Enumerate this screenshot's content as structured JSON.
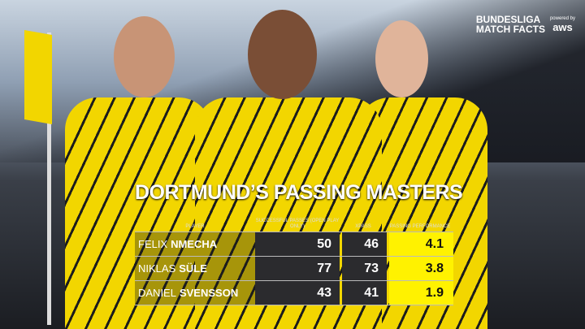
{
  "brand": {
    "line1": "BUNDESLIGA",
    "line2": "MATCH FACTS",
    "powered": "powered by",
    "aws": "aws"
  },
  "title": "DORTMUND’S PASSING MASTERS",
  "headers": {
    "player": "PLAYER",
    "passes": "SUCCESSFUL PASSES (OPEN PLAY ONLY)",
    "xpass": "XPASS",
    "performance": "PASSING PERFORMANCE"
  },
  "rows": [
    {
      "first": "FELIX",
      "last": "NMECHA",
      "passes": "50",
      "xpass": "46",
      "performance": "4.1"
    },
    {
      "first": "NIKLAS",
      "last": "SÜLE",
      "passes": "77",
      "xpass": "73",
      "performance": "3.8"
    },
    {
      "first": "DANIEL",
      "last": "SVENSSON",
      "passes": "43",
      "xpass": "41",
      "performance": "1.9"
    }
  ],
  "colors": {
    "highlight": "#fff200",
    "cell": "#2b2b2e"
  }
}
